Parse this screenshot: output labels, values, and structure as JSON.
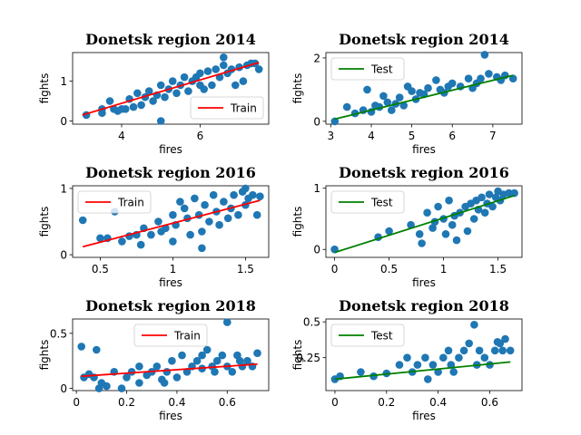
{
  "figure": {
    "background": "#ffffff"
  },
  "chart_data": [
    {
      "type": "scatter",
      "title": "Donetsk region 2014",
      "xlabel": "fires",
      "ylabel": "fights",
      "xlim": [
        2.75,
        7.75
      ],
      "ylim": [
        -0.08,
        1.72
      ],
      "xticks": [
        4,
        6
      ],
      "yticks": [
        0,
        1
      ],
      "legend": {
        "label": "Train",
        "placement": "lower-right"
      },
      "line_color": "#ff0000",
      "point_color": "#1f77b4",
      "line": {
        "x": [
          3.0,
          7.5
        ],
        "y": [
          0.15,
          1.47
        ]
      },
      "points": [
        [
          3.1,
          0.15
        ],
        [
          3.5,
          0.3
        ],
        [
          3.5,
          0.2
        ],
        [
          3.7,
          0.5
        ],
        [
          3.8,
          0.3
        ],
        [
          3.9,
          0.25
        ],
        [
          4.0,
          0.3
        ],
        [
          4.1,
          0.3
        ],
        [
          4.2,
          0.55
        ],
        [
          4.3,
          0.35
        ],
        [
          4.4,
          0.7
        ],
        [
          4.5,
          0.4
        ],
        [
          4.6,
          0.6
        ],
        [
          4.7,
          0.75
        ],
        [
          4.8,
          0.5
        ],
        [
          4.9,
          0.65
        ],
        [
          5.0,
          0.9
        ],
        [
          5.0,
          0.0
        ],
        [
          5.1,
          0.6
        ],
        [
          5.2,
          0.8
        ],
        [
          5.3,
          1.0
        ],
        [
          5.4,
          0.7
        ],
        [
          5.5,
          0.9
        ],
        [
          5.6,
          1.1
        ],
        [
          5.7,
          0.75
        ],
        [
          5.8,
          1.0
        ],
        [
          5.9,
          1.1
        ],
        [
          6.0,
          0.9
        ],
        [
          6.0,
          1.2
        ],
        [
          6.1,
          0.8
        ],
        [
          6.2,
          1.25
        ],
        [
          6.3,
          0.9
        ],
        [
          6.4,
          1.3
        ],
        [
          6.5,
          1.1
        ],
        [
          6.6,
          1.6
        ],
        [
          6.6,
          1.4
        ],
        [
          6.7,
          1.2
        ],
        [
          6.8,
          1.3
        ],
        [
          6.9,
          0.9
        ],
        [
          7.0,
          1.35
        ],
        [
          7.1,
          1.0
        ],
        [
          7.2,
          1.4
        ],
        [
          7.3,
          1.45
        ],
        [
          7.4,
          1.45
        ],
        [
          7.5,
          1.3
        ]
      ]
    },
    {
      "type": "scatter",
      "title": "Donetsk region 2014",
      "xlabel": "fires",
      "ylabel": "fights",
      "xlim": [
        2.88,
        7.72
      ],
      "ylim": [
        -0.09,
        2.17
      ],
      "xticks": [
        3,
        4,
        5,
        6,
        7
      ],
      "yticks": [
        0,
        2
      ],
      "legend": {
        "label": "Test",
        "placement": "upper-left"
      },
      "line_color": "#008000",
      "point_color": "#1f77b4",
      "line": {
        "x": [
          3.1,
          7.5
        ],
        "y": [
          0.07,
          1.45
        ]
      },
      "points": [
        [
          3.1,
          0.0
        ],
        [
          3.4,
          0.45
        ],
        [
          3.6,
          0.25
        ],
        [
          3.8,
          0.35
        ],
        [
          3.9,
          1.0
        ],
        [
          4.0,
          0.3
        ],
        [
          4.1,
          0.5
        ],
        [
          4.2,
          0.45
        ],
        [
          4.3,
          0.8
        ],
        [
          4.4,
          0.6
        ],
        [
          4.5,
          0.35
        ],
        [
          4.6,
          0.55
        ],
        [
          4.7,
          0.75
        ],
        [
          4.8,
          0.5
        ],
        [
          4.9,
          1.1
        ],
        [
          5.0,
          0.95
        ],
        [
          5.1,
          0.7
        ],
        [
          5.2,
          0.9
        ],
        [
          5.3,
          0.85
        ],
        [
          5.4,
          1.05
        ],
        [
          5.6,
          1.3
        ],
        [
          5.7,
          1.0
        ],
        [
          5.8,
          0.9
        ],
        [
          5.9,
          1.1
        ],
        [
          6.0,
          1.2
        ],
        [
          6.2,
          1.1
        ],
        [
          6.4,
          1.35
        ],
        [
          6.5,
          1.05
        ],
        [
          6.6,
          1.2
        ],
        [
          6.7,
          1.35
        ],
        [
          6.8,
          2.1
        ],
        [
          6.9,
          1.5
        ],
        [
          7.1,
          1.4
        ],
        [
          7.2,
          1.3
        ],
        [
          7.3,
          1.45
        ],
        [
          7.5,
          1.35
        ]
      ]
    },
    {
      "type": "scatter",
      "title": "Donetsk region 2016",
      "xlabel": "fires",
      "ylabel": "fights",
      "xlim": [
        0.31,
        1.66
      ],
      "ylim": [
        -0.04,
        1.04
      ],
      "xticks": [
        0.5,
        1.0,
        1.5
      ],
      "yticks": [
        0,
        1
      ],
      "legend": {
        "label": "Train",
        "placement": "upper-left"
      },
      "line_color": "#ff0000",
      "point_color": "#1f77b4",
      "line": {
        "x": [
          0.38,
          1.6
        ],
        "y": [
          0.12,
          0.82
        ]
      },
      "points": [
        [
          0.38,
          0.52
        ],
        [
          0.5,
          0.25
        ],
        [
          0.55,
          0.25
        ],
        [
          0.6,
          0.65
        ],
        [
          0.65,
          0.2
        ],
        [
          0.7,
          0.28
        ],
        [
          0.75,
          0.3
        ],
        [
          0.78,
          0.15
        ],
        [
          0.8,
          0.4
        ],
        [
          0.85,
          0.3
        ],
        [
          0.9,
          0.5
        ],
        [
          0.92,
          0.35
        ],
        [
          0.95,
          0.4
        ],
        [
          1.0,
          0.6
        ],
        [
          1.0,
          0.2
        ],
        [
          1.02,
          0.45
        ],
        [
          1.05,
          0.8
        ],
        [
          1.08,
          0.7
        ],
        [
          1.1,
          0.55
        ],
        [
          1.12,
          0.3
        ],
        [
          1.15,
          0.85
        ],
        [
          1.18,
          0.6
        ],
        [
          1.2,
          0.35
        ],
        [
          1.2,
          0.1
        ],
        [
          1.22,
          0.75
        ],
        [
          1.25,
          0.5
        ],
        [
          1.28,
          0.9
        ],
        [
          1.3,
          0.65
        ],
        [
          1.32,
          0.45
        ],
        [
          1.35,
          0.8
        ],
        [
          1.38,
          0.55
        ],
        [
          1.4,
          0.7
        ],
        [
          1.42,
          0.9
        ],
        [
          1.45,
          0.6
        ],
        [
          1.48,
          0.95
        ],
        [
          1.5,
          1.0
        ],
        [
          1.5,
          0.75
        ],
        [
          1.52,
          0.85
        ],
        [
          1.55,
          0.9
        ],
        [
          1.58,
          0.6
        ],
        [
          1.6,
          0.88
        ]
      ]
    },
    {
      "type": "scatter",
      "title": "Donetsk region 2016",
      "xlabel": "fires",
      "ylabel": "fights",
      "xlim": [
        -0.08,
        1.72
      ],
      "ylim": [
        -0.13,
        1.04
      ],
      "xticks": [
        0.0,
        0.5,
        1.0,
        1.5
      ],
      "yticks": [
        0,
        1
      ],
      "legend": {
        "label": "Test",
        "placement": "upper-left"
      },
      "line_color": "#008000",
      "point_color": "#1f77b4",
      "line": {
        "x": [
          0.0,
          1.65
        ],
        "y": [
          -0.05,
          0.88
        ]
      },
      "points": [
        [
          0.0,
          0.0
        ],
        [
          0.4,
          0.2
        ],
        [
          0.5,
          0.3
        ],
        [
          0.7,
          0.4
        ],
        [
          0.78,
          0.25
        ],
        [
          0.8,
          0.1
        ],
        [
          0.85,
          0.6
        ],
        [
          0.9,
          0.35
        ],
        [
          0.92,
          0.45
        ],
        [
          0.95,
          0.7
        ],
        [
          1.0,
          0.5
        ],
        [
          1.02,
          0.25
        ],
        [
          1.05,
          0.8
        ],
        [
          1.08,
          0.4
        ],
        [
          1.1,
          0.55
        ],
        [
          1.12,
          0.15
        ],
        [
          1.15,
          0.6
        ],
        [
          1.2,
          0.7
        ],
        [
          1.22,
          0.3
        ],
        [
          1.25,
          0.75
        ],
        [
          1.28,
          0.5
        ],
        [
          1.3,
          0.8
        ],
        [
          1.32,
          0.65
        ],
        [
          1.35,
          0.85
        ],
        [
          1.38,
          0.6
        ],
        [
          1.4,
          0.75
        ],
        [
          1.42,
          0.9
        ],
        [
          1.45,
          0.7
        ],
        [
          1.48,
          0.85
        ],
        [
          1.5,
          0.95
        ],
        [
          1.52,
          0.8
        ],
        [
          1.55,
          0.9
        ],
        [
          1.6,
          0.92
        ],
        [
          1.65,
          0.92
        ]
      ]
    },
    {
      "type": "scatter",
      "title": "Donetsk region 2018",
      "xlabel": "fires",
      "ylabel": "fights",
      "xlim": [
        -0.015,
        0.765
      ],
      "ylim": [
        -0.02,
        0.63
      ],
      "xticks": [
        0.0,
        0.2,
        0.4,
        0.6
      ],
      "yticks": [
        0.0,
        0.5
      ],
      "legend": {
        "label": "Train",
        "placement": "upper-center"
      },
      "line_color": "#ff0000",
      "point_color": "#1f77b4",
      "line": {
        "x": [
          0.02,
          0.72
        ],
        "y": [
          0.11,
          0.22
        ]
      },
      "points": [
        [
          0.02,
          0.38
        ],
        [
          0.03,
          0.1
        ],
        [
          0.05,
          0.13
        ],
        [
          0.07,
          0.1
        ],
        [
          0.08,
          0.35
        ],
        [
          0.09,
          0.0
        ],
        [
          0.1,
          0.05
        ],
        [
          0.12,
          0.02
        ],
        [
          0.15,
          0.15
        ],
        [
          0.18,
          0.0
        ],
        [
          0.2,
          0.1
        ],
        [
          0.22,
          0.15
        ],
        [
          0.25,
          0.2
        ],
        [
          0.25,
          0.05
        ],
        [
          0.28,
          0.12
        ],
        [
          0.3,
          0.15
        ],
        [
          0.32,
          0.2
        ],
        [
          0.34,
          0.08
        ],
        [
          0.35,
          0.05
        ],
        [
          0.36,
          0.15
        ],
        [
          0.38,
          0.25
        ],
        [
          0.4,
          0.1
        ],
        [
          0.42,
          0.3
        ],
        [
          0.44,
          0.15
        ],
        [
          0.46,
          0.2
        ],
        [
          0.48,
          0.25
        ],
        [
          0.5,
          0.3
        ],
        [
          0.5,
          0.18
        ],
        [
          0.52,
          0.35
        ],
        [
          0.54,
          0.2
        ],
        [
          0.55,
          0.15
        ],
        [
          0.56,
          0.25
        ],
        [
          0.58,
          0.3
        ],
        [
          0.6,
          0.6
        ],
        [
          0.6,
          0.2
        ],
        [
          0.62,
          0.15
        ],
        [
          0.64,
          0.3
        ],
        [
          0.65,
          0.25
        ],
        [
          0.66,
          0.2
        ],
        [
          0.68,
          0.25
        ],
        [
          0.7,
          0.2
        ],
        [
          0.72,
          0.32
        ]
      ]
    },
    {
      "type": "scatter",
      "title": "Donetsk region 2018",
      "xlabel": "fires",
      "ylabel": "fights",
      "xlim": [
        -0.035,
        0.725
      ],
      "ylim": [
        0.02,
        0.52
      ],
      "xticks": [
        0.0,
        0.2,
        0.4,
        0.6
      ],
      "yticks": [
        0.25,
        0.5
      ],
      "legend": {
        "label": "Test",
        "placement": "upper-left"
      },
      "line_color": "#008000",
      "point_color": "#1f77b4",
      "line": {
        "x": [
          0.0,
          0.68
        ],
        "y": [
          0.1,
          0.22
        ]
      },
      "points": [
        [
          0.0,
          0.1
        ],
        [
          0.02,
          0.12
        ],
        [
          0.1,
          0.15
        ],
        [
          0.15,
          0.12
        ],
        [
          0.2,
          0.14
        ],
        [
          0.25,
          0.2
        ],
        [
          0.28,
          0.25
        ],
        [
          0.3,
          0.15
        ],
        [
          0.32,
          0.2
        ],
        [
          0.35,
          0.25
        ],
        [
          0.36,
          0.1
        ],
        [
          0.38,
          0.2
        ],
        [
          0.4,
          0.15
        ],
        [
          0.42,
          0.25
        ],
        [
          0.44,
          0.3
        ],
        [
          0.45,
          0.2
        ],
        [
          0.46,
          0.15
        ],
        [
          0.48,
          0.25
        ],
        [
          0.5,
          0.3
        ],
        [
          0.52,
          0.35
        ],
        [
          0.54,
          0.48
        ],
        [
          0.55,
          0.2
        ],
        [
          0.56,
          0.3
        ],
        [
          0.58,
          0.25
        ],
        [
          0.6,
          0.2
        ],
        [
          0.62,
          0.3
        ],
        [
          0.63,
          0.36
        ],
        [
          0.64,
          0.35
        ],
        [
          0.65,
          0.3
        ],
        [
          0.66,
          0.38
        ],
        [
          0.68,
          0.3
        ]
      ]
    }
  ]
}
